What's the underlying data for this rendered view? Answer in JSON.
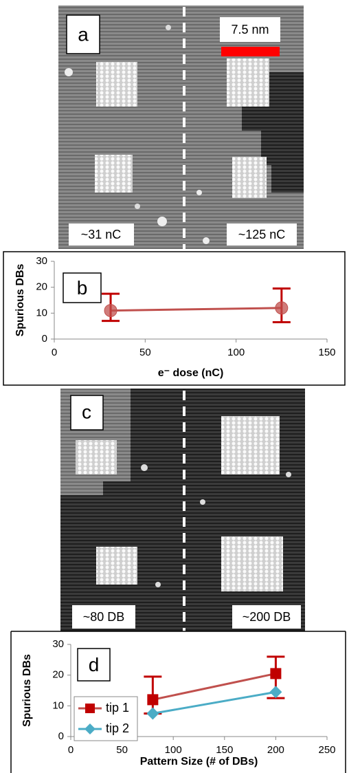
{
  "images": [
    {
      "label": "a",
      "scale_label": "7.5 nm",
      "left_label": "~31 nC",
      "right_label": "~125 nC"
    },
    {
      "label": "c",
      "left_label": "~80 DB",
      "right_label": "~200 DB"
    }
  ],
  "chart_data": [
    {
      "type": "line",
      "label": "b",
      "ylabel": "Spurious DBs",
      "xlabel": "e⁻ dose (nC)",
      "xlim": [
        0,
        150
      ],
      "xticks": [
        0,
        50,
        100,
        150
      ],
      "ylim": [
        0,
        30
      ],
      "yticks": [
        0,
        10,
        20,
        30
      ],
      "series": [
        {
          "color": "#c0504d",
          "marker": "circle",
          "x": [
            31,
            125
          ],
          "values": [
            11,
            12
          ],
          "error_low": [
            7,
            6.5
          ],
          "error_high": [
            17.5,
            19.5
          ]
        }
      ]
    },
    {
      "type": "line",
      "label": "d",
      "ylabel": "Spurious DBs",
      "xlabel": "Pattern Size (# of DBs)",
      "xlim": [
        0,
        250
      ],
      "xticks": [
        0,
        50,
        100,
        150,
        200,
        250
      ],
      "ylim": [
        0,
        30
      ],
      "yticks": [
        0,
        10,
        20,
        30
      ],
      "legend": "lower left",
      "series": [
        {
          "name": "tip 1",
          "color": "#c0504d",
          "marker": "square",
          "x": [
            80,
            200
          ],
          "values": [
            12,
            20.5
          ],
          "error_low": [
            7.5,
            12.5
          ],
          "error_high": [
            19.5,
            26
          ]
        },
        {
          "name": "tip 2",
          "color": "#4bacc6",
          "marker": "diamond",
          "x": [
            80,
            200
          ],
          "values": [
            7.5,
            14.5
          ]
        }
      ]
    }
  ]
}
